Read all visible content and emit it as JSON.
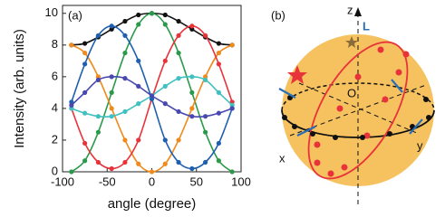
{
  "chart_data": {
    "type": "line",
    "label": "(a)",
    "x_label": "angle (degree)",
    "y_label": "Intensity (arb. units)",
    "x": [
      -90,
      -75,
      -60,
      -45,
      -30,
      -15,
      0,
      15,
      30,
      45,
      60,
      75,
      90
    ],
    "series": [
      {
        "color": "#111111",
        "values": [
          8,
          8.1,
          8.5,
          9,
          9.5,
          9.9,
          10,
          9.9,
          9.5,
          9,
          8.5,
          8.1,
          8
        ]
      },
      {
        "color": "#2a9a4a",
        "values": [
          0,
          0.7,
          2.5,
          5,
          7.5,
          9.3,
          10,
          9.3,
          7.5,
          5,
          2.5,
          0.7,
          0
        ]
      },
      {
        "color": "#f08a1c",
        "values": [
          8,
          7.5,
          6,
          4,
          2,
          0.5,
          0,
          0.5,
          2,
          4,
          6,
          7.5,
          8
        ]
      },
      {
        "color": "#e8333a",
        "values": [
          4,
          1.8,
          0.6,
          0.2,
          0.6,
          2,
          4.6,
          7,
          8.6,
          9.2,
          8.6,
          6.8,
          4.4
        ]
      },
      {
        "color": "#1f5fb0",
        "values": [
          4.4,
          6.8,
          8.6,
          9.2,
          8.6,
          7,
          4.6,
          2,
          0.6,
          0.2,
          0.6,
          1.8,
          4
        ]
      },
      {
        "color": "#40c0c0",
        "values": [
          4,
          3.7,
          3.5,
          3.5,
          3.8,
          4.3,
          4.8,
          5.4,
          5.9,
          6,
          5.8,
          5,
          4.2
        ]
      },
      {
        "color": "#4848b0",
        "values": [
          4.2,
          5,
          5.8,
          6,
          5.9,
          5.4,
          4.8,
          4.3,
          3.8,
          3.5,
          3.5,
          3.7,
          4
        ]
      }
    ],
    "xlim": [
      -100,
      100
    ],
    "xticks": [
      -100,
      -50,
      0,
      50,
      100
    ],
    "ylim": [
      0,
      10.5
    ],
    "yticks": [
      0,
      2,
      4,
      6,
      8,
      10
    ]
  },
  "diagram": {
    "label": "(b)",
    "z_axis": "z",
    "x_axis": "x",
    "y_axis": "y",
    "origin": "O",
    "point": "L"
  }
}
